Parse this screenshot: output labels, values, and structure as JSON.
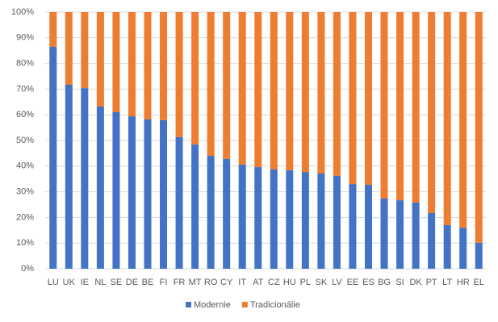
{
  "chart_data": {
    "type": "stacked_bar",
    "categories": [
      "LU",
      "UK",
      "IE",
      "NL",
      "SE",
      "DE",
      "BE",
      "FI",
      "FR",
      "MT",
      "RO",
      "CY",
      "IT",
      "AT",
      "CZ",
      "HU",
      "PL",
      "SK",
      "LV",
      "EE",
      "ES",
      "BG",
      "SI",
      "DK",
      "PT",
      "LT",
      "HR",
      "EL"
    ],
    "series": [
      {
        "name": "Modernie",
        "color": "#4472c4",
        "values": [
          86.5,
          71.7,
          70.4,
          63.2,
          61,
          59.4,
          58.2,
          57.9,
          51.3,
          48.4,
          44,
          42.8,
          40.6,
          39.6,
          38.7,
          38.4,
          37.7,
          37.1,
          36.2,
          33,
          32.7,
          27.4,
          26.7,
          25.8,
          21.7,
          17,
          16,
          10.1
        ]
      },
      {
        "name": "Tradicionālie",
        "color": "#ed7d31",
        "values": [
          13.5,
          28.3,
          29.6,
          36.8,
          39,
          40.6,
          41.8,
          42.1,
          48.7,
          51.6,
          56,
          57.2,
          59.4,
          60.4,
          61.3,
          61.6,
          62.3,
          62.9,
          63.8,
          67,
          67.3,
          72.6,
          73.3,
          74.2,
          78.3,
          83,
          84,
          89.9
        ]
      }
    ],
    "ylim": [
      0,
      100
    ],
    "yticks": [
      {
        "value": 0,
        "label": "0%"
      },
      {
        "value": 10,
        "label": "10%"
      },
      {
        "value": 20,
        "label": "20%"
      },
      {
        "value": 30,
        "label": "30%"
      },
      {
        "value": 40,
        "label": "40%"
      },
      {
        "value": 50,
        "label": "50%"
      },
      {
        "value": 60,
        "label": "60%"
      },
      {
        "value": 70,
        "label": "70%"
      },
      {
        "value": 80,
        "label": "80%"
      },
      {
        "value": 90,
        "label": "90%"
      },
      {
        "value": 100,
        "label": "100%"
      }
    ],
    "grid": true,
    "legend": "bottom"
  }
}
